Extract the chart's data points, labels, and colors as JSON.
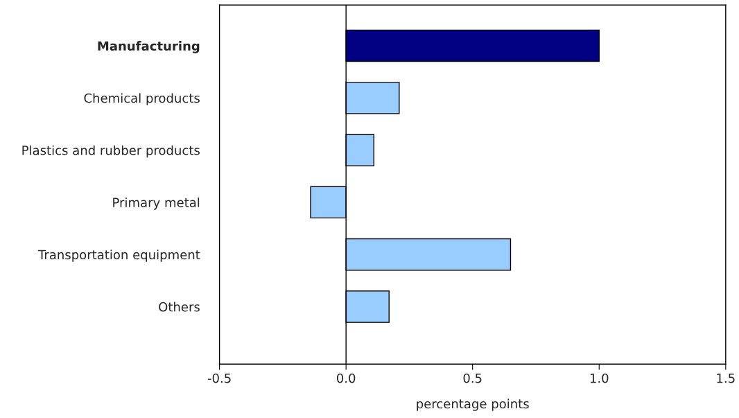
{
  "chart_data": {
    "type": "bar",
    "orientation": "horizontal",
    "categories": [
      "Manufacturing",
      "Chemical products",
      "Plastics and rubber products",
      "Primary metal",
      "Transportation equipment",
      "Others"
    ],
    "values": [
      1.0,
      0.21,
      0.11,
      -0.14,
      0.65,
      0.17
    ],
    "colors": [
      "#000080",
      "#99ccff",
      "#99ccff",
      "#99ccff",
      "#99ccff",
      "#99ccff"
    ],
    "xlabel": "percentage points",
    "xlim": [
      -0.5,
      1.5
    ],
    "xticks": [
      -0.5,
      {
        "value": 0,
        "label": "0.0"
      },
      0.5,
      {
        "value": 1,
        "label": "1.0"
      },
      1.5
    ],
    "ref_lines": [
      {
        "axis": "x",
        "value": 0,
        "color": "#000000"
      }
    ],
    "grid": false,
    "legend": false
  }
}
